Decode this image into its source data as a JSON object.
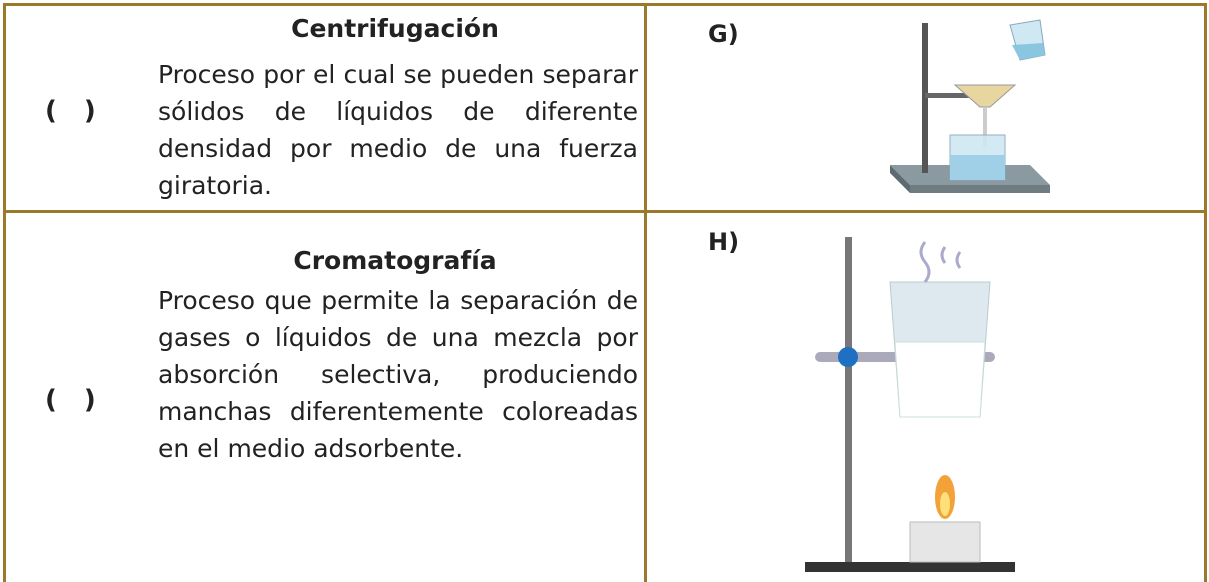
{
  "rows": [
    {
      "blank": "( )",
      "title": "Centrifugación",
      "description": "Proceso por el cual se pueden separar sólidos de líquidos de diferente densidad por medio de una fuerza giratoria.",
      "label": "G)"
    },
    {
      "blank": "( )",
      "title": "Cromatografía",
      "description": "Proceso que permite la separación de gases o líquidos de una mezcla por absorción selectiva, produciendo manchas diferentemente coloreadas en el medio adsorbente.",
      "label": "H)"
    }
  ]
}
